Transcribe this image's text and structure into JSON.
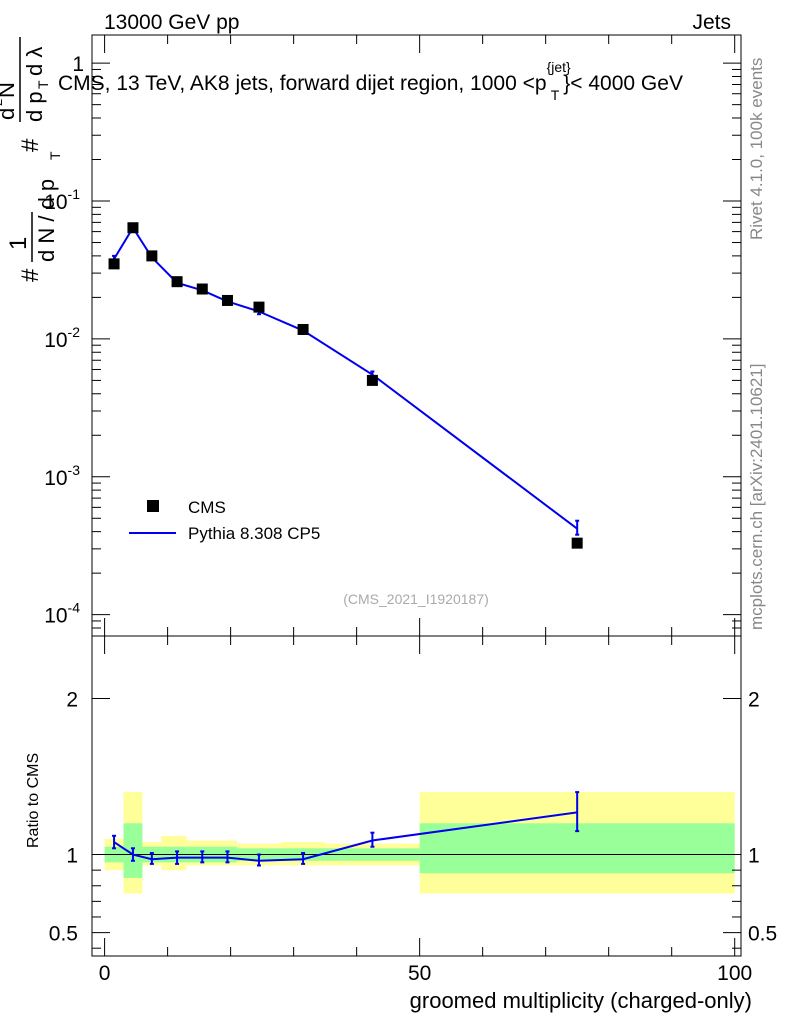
{
  "header": {
    "left": "13000 GeV pp",
    "right": "Jets"
  },
  "side_labels": {
    "rivet": "Rivet 4.1.0,  100k events",
    "mcplots": "mcplots.cern.ch [arXiv:2401.10621]"
  },
  "plot_title": "CMS, 13 TeV, AK8 jets, forward dijet region, 1000 <p",
  "plot_title_sup": "{jet}",
  "plot_title_sub": "T",
  "plot_title_end": "}< 4000 GeV",
  "watermark": "(CMS_2021_I1920187)",
  "colors": {
    "mc": "#0000ee",
    "band_inner": "#99ff99",
    "band_outer": "#ffff99",
    "data": "#000000"
  },
  "chart_data": [
    {
      "type": "scatter",
      "title": "CMS, 13 TeV, AK8 jets, forward dijet region, 1000 < pT < 4000 GeV",
      "ylabel_parts": [
        "#",
        "1",
        "d N / d p",
        "T",
        "#",
        "d",
        "2",
        "N",
        "d p",
        "T",
        "d λ"
      ],
      "xlabel": "",
      "xlim": [
        -2,
        101
      ],
      "ylim_log": [
        7e-05,
        1.6
      ],
      "yscale": "log",
      "ytick_labels": [
        {
          "base": "10",
          "exp": "-4",
          "value": 0.0001
        },
        {
          "base": "10",
          "exp": "-3",
          "value": 0.001
        },
        {
          "base": "10",
          "exp": "-2",
          "value": 0.01
        },
        {
          "base": "10",
          "exp": "-1",
          "value": 0.1
        },
        {
          "base": "1",
          "exp": "",
          "value": 1
        }
      ],
      "legend": [
        {
          "name": "CMS",
          "marker": "square"
        },
        {
          "name": "Pythia 8.308 CP5",
          "marker": "line"
        }
      ],
      "series": [
        {
          "name": "CMS",
          "x": [
            1.5,
            4.5,
            7.5,
            11.5,
            15.5,
            19.5,
            24.5,
            31.5,
            42.5,
            75
          ],
          "values": [
            0.035,
            0.064,
            0.04,
            0.026,
            0.023,
            0.019,
            0.017,
            0.0117,
            0.005,
            0.00033
          ]
        },
        {
          "name": "Pythia 8.308 CP5",
          "x": [
            1.5,
            4.5,
            7.5,
            11.5,
            15.5,
            19.5,
            24.5,
            31.5,
            42.5,
            75
          ],
          "values": [
            0.038,
            0.064,
            0.039,
            0.0255,
            0.0225,
            0.0187,
            0.0158,
            0.0115,
            0.0055,
            0.00042
          ],
          "err_hi": [
            0.04,
            0.066,
            0.04,
            0.0262,
            0.0232,
            0.0193,
            0.0165,
            0.0118,
            0.0058,
            0.00048
          ],
          "err_lo": [
            0.036,
            0.062,
            0.038,
            0.0248,
            0.0218,
            0.0181,
            0.0151,
            0.0112,
            0.0052,
            0.00038
          ]
        }
      ]
    },
    {
      "type": "line",
      "title": "",
      "xlabel": "groomed multiplicity (charged-only)",
      "ylabel": "Ratio to CMS",
      "xlim": [
        -2,
        101
      ],
      "ylim": [
        0.35,
        2.4
      ],
      "xtick_labels": [
        "0",
        "50",
        "100"
      ],
      "xtick_values": [
        0,
        50,
        100
      ],
      "ytick_labels": [
        "0.5",
        "1",
        "2"
      ],
      "ytick_values": [
        0.5,
        1,
        2
      ],
      "bands": [
        {
          "x0": 0,
          "x1": 3,
          "inner": [
            0.95,
            1.05
          ],
          "outer": [
            0.9,
            1.1
          ]
        },
        {
          "x0": 3,
          "x1": 6,
          "inner": [
            0.85,
            1.2
          ],
          "outer": [
            0.75,
            1.4
          ]
        },
        {
          "x0": 6,
          "x1": 9,
          "inner": [
            0.95,
            1.05
          ],
          "outer": [
            0.93,
            1.08
          ]
        },
        {
          "x0": 9,
          "x1": 13,
          "inner": [
            0.95,
            1.05
          ],
          "outer": [
            0.9,
            1.12
          ]
        },
        {
          "x0": 13,
          "x1": 18,
          "inner": [
            0.95,
            1.05
          ],
          "outer": [
            0.93,
            1.09
          ]
        },
        {
          "x0": 18,
          "x1": 21,
          "inner": [
            0.95,
            1.05
          ],
          "outer": [
            0.93,
            1.09
          ]
        },
        {
          "x0": 21,
          "x1": 28,
          "inner": [
            0.96,
            1.04
          ],
          "outer": [
            0.93,
            1.07
          ]
        },
        {
          "x0": 28,
          "x1": 35,
          "inner": [
            0.96,
            1.04
          ],
          "outer": [
            0.93,
            1.08
          ]
        },
        {
          "x0": 35,
          "x1": 50,
          "inner": [
            0.96,
            1.04
          ],
          "outer": [
            0.93,
            1.07
          ]
        },
        {
          "x0": 50,
          "x1": 100,
          "inner": [
            0.88,
            1.2
          ],
          "outer": [
            0.75,
            1.4
          ]
        }
      ],
      "series": [
        {
          "name": "Pythia 8.308 CP5 / CMS",
          "x": [
            1.5,
            4.5,
            7.5,
            11.5,
            15.5,
            19.5,
            24.5,
            31.5,
            42.5,
            75
          ],
          "values": [
            1.08,
            1.0,
            0.97,
            0.98,
            0.98,
            0.98,
            0.96,
            0.97,
            1.09,
            1.27
          ],
          "err_lo": [
            1.04,
            0.96,
            0.94,
            0.94,
            0.95,
            0.95,
            0.93,
            0.94,
            1.05,
            1.15
          ],
          "err_hi": [
            1.12,
            1.04,
            1.01,
            1.02,
            1.02,
            1.02,
            1.0,
            1.01,
            1.14,
            1.4
          ]
        }
      ]
    }
  ]
}
